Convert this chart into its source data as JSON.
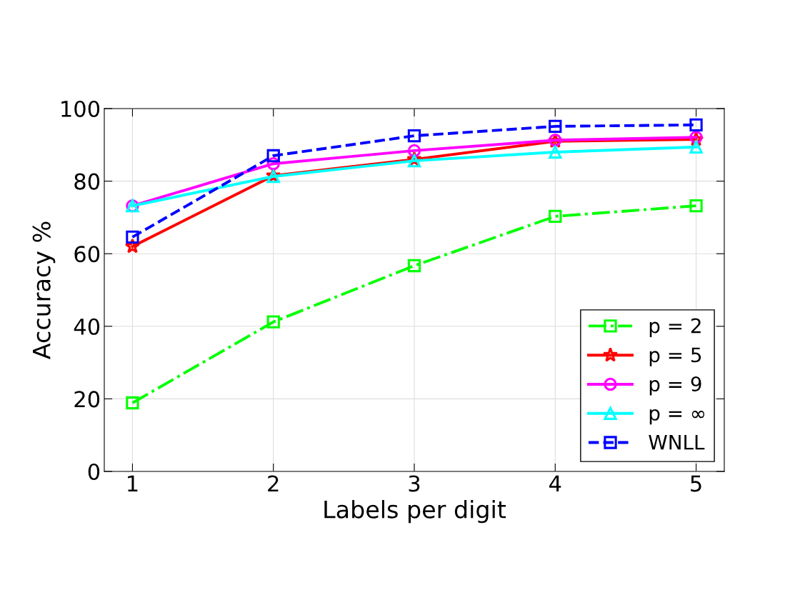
{
  "chart_data": {
    "type": "line",
    "xlabel": "Labels per digit",
    "ylabel": "Accuracy %",
    "x": [
      1,
      2,
      3,
      4,
      5
    ],
    "xlim": [
      0.8,
      5.2
    ],
    "xticks": [
      1,
      2,
      3,
      4,
      5
    ],
    "ylim": [
      0,
      100
    ],
    "yticks": [
      0,
      20,
      40,
      60,
      80,
      100
    ],
    "grid": true,
    "legend": "bottom right",
    "series": [
      {
        "name": "p = 2",
        "color": "#00ff00",
        "values": [
          18.9,
          41.2,
          56.7,
          70.3,
          73.2
        ],
        "marker": "square",
        "line_style": "dashdot"
      },
      {
        "name": "p = 5",
        "color": "#ff0000",
        "values": [
          62,
          81.5,
          86,
          91,
          91.5
        ],
        "marker": "star",
        "line_style": "solid"
      },
      {
        "name": "p = 9",
        "color": "#ff00ff",
        "values": [
          73.2,
          84.8,
          88.4,
          91.3,
          92.1
        ],
        "marker": "circle",
        "line_style": "solid"
      },
      {
        "name": "p = ∞",
        "color": "#00ffff",
        "values": [
          73.2,
          81.3,
          85.6,
          88,
          89.4
        ],
        "marker": "triangle",
        "line_style": "solid"
      },
      {
        "name": "WNLL",
        "color": "#0000ff",
        "values": [
          64.6,
          87,
          92.5,
          95.1,
          95.5
        ],
        "marker": "square",
        "line_style": "dashed"
      }
    ]
  }
}
